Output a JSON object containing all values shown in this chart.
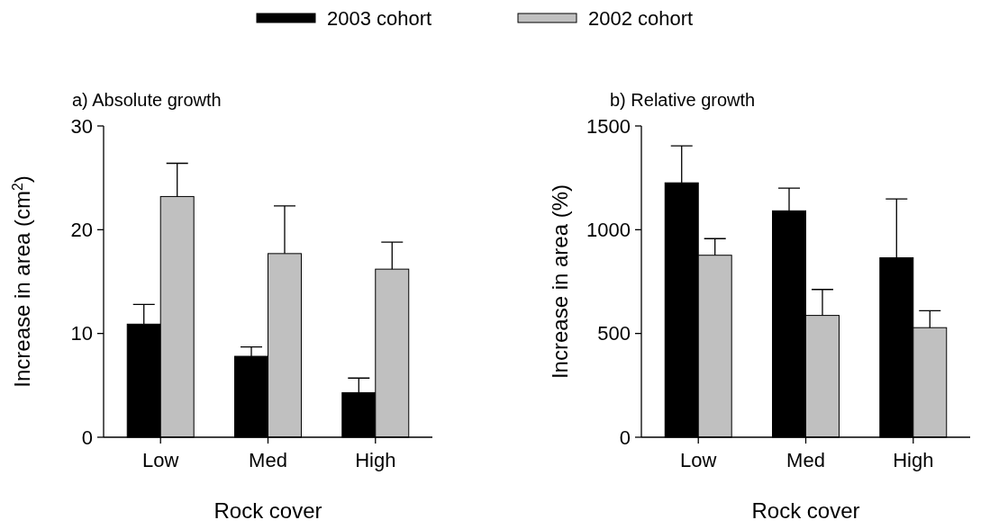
{
  "chart_data": [
    {
      "type": "bar",
      "title": "a) Absolute growth",
      "xlabel": "Rock cover",
      "ylabel": "Increase in area (cm$^{2}$)",
      "categories": [
        "Low",
        "Med",
        "High"
      ],
      "series": [
        {
          "name": "2003 cohort",
          "color": "#000000",
          "values": [
            10.9,
            7.8,
            4.3
          ],
          "errors": [
            [
              10.9,
              12.8
            ],
            [
              7.8,
              8.7
            ],
            [
              4.3,
              5.7
            ]
          ]
        },
        {
          "name": "2002 cohort",
          "color": "#c0c0c0",
          "values": [
            23.2,
            17.7,
            16.2
          ],
          "errors": [
            [
              23.2,
              26.4
            ],
            [
              17.7,
              22.3
            ],
            [
              16.2,
              18.8
            ]
          ]
        }
      ],
      "ylim": [
        0,
        30
      ],
      "yticks": [
        0,
        10,
        20,
        30
      ],
      "legend": "top",
      "grid": false
    },
    {
      "type": "bar",
      "title": "b) Relative growth",
      "xlabel": "Rock cover",
      "ylabel": "Increase in area (%)",
      "categories": [
        "Low",
        "Med",
        "High"
      ],
      "series": [
        {
          "color": "#000000",
          "values": [
            1226,
            1091,
            865
          ],
          "errors": [
            [
              1226,
              1404
            ],
            [
              1091,
              1200
            ],
            [
              865,
              1148
            ]
          ]
        },
        {
          "color": "#c0c0c0",
          "values": [
            877,
            587,
            528
          ],
          "errors": [
            [
              877,
              957
            ],
            [
              587,
              712
            ],
            [
              528,
              610
            ]
          ]
        }
      ],
      "ylim": [
        0,
        1500
      ],
      "yticks": [
        0,
        500,
        1000,
        1500
      ],
      "grid": false
    }
  ]
}
